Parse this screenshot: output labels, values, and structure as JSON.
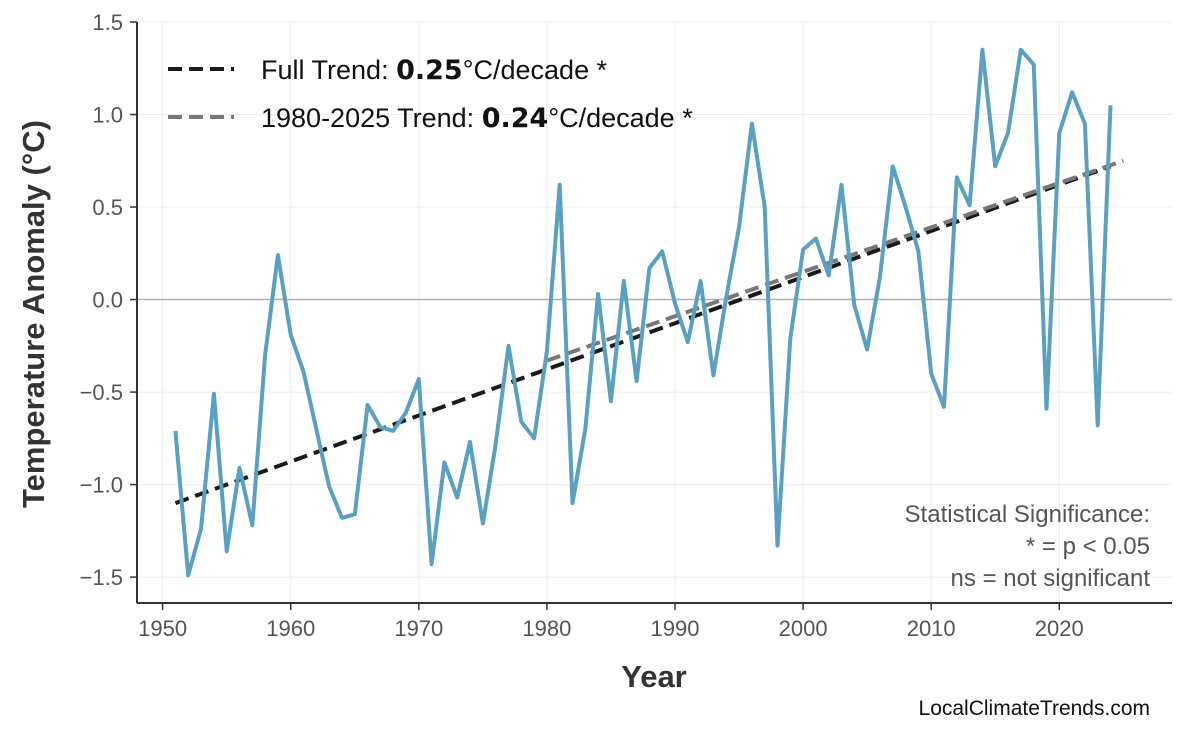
{
  "chart_data": {
    "type": "line",
    "title": "",
    "xlabel": "Year",
    "ylabel": "Temperature Anomaly (°C)",
    "xlim": [
      1948,
      2028.8
    ],
    "ylim": [
      -1.64,
      1.5
    ],
    "xticks": [
      1950,
      1960,
      1970,
      1980,
      1990,
      2000,
      2010,
      2020
    ],
    "yticks": [
      -1.5,
      -1.0,
      -0.5,
      0.0,
      0.5,
      1.0,
      1.5
    ],
    "ytick_labels": [
      "−1.5",
      "−1.0",
      "−0.5",
      "0.0",
      "0.5",
      "1.0",
      "1.5"
    ],
    "grid": true,
    "zero_line": true,
    "x": [
      1951,
      1952,
      1953,
      1954,
      1955,
      1956,
      1957,
      1958,
      1959,
      1960,
      1961,
      1962,
      1963,
      1964,
      1965,
      1966,
      1967,
      1968,
      1969,
      1970,
      1971,
      1972,
      1973,
      1974,
      1975,
      1976,
      1977,
      1978,
      1979,
      1980,
      1981,
      1982,
      1983,
      1984,
      1985,
      1986,
      1987,
      1988,
      1989,
      1990,
      1991,
      1992,
      1993,
      1994,
      1995,
      1996,
      1997,
      1998,
      1999,
      2000,
      2001,
      2002,
      2003,
      2004,
      2005,
      2006,
      2007,
      2008,
      2009,
      2010,
      2011,
      2012,
      2013,
      2014,
      2015,
      2016,
      2017,
      2018,
      2019,
      2020,
      2021,
      2022,
      2023,
      2024
    ],
    "series": [
      {
        "values": [
          -0.71,
          -1.49,
          -1.24,
          -0.51,
          -1.36,
          -0.91,
          -1.22,
          -0.3,
          0.24,
          -0.19,
          -0.39,
          -0.7,
          -1.01,
          -1.18,
          -1.16,
          -0.57,
          -0.69,
          -0.71,
          -0.61,
          -0.43,
          -1.43,
          -0.88,
          -1.07,
          -0.77,
          -1.21,
          -0.78,
          -0.25,
          -0.66,
          -0.75,
          -0.28,
          0.62,
          -1.1,
          -0.7,
          0.03,
          -0.55,
          0.1,
          -0.44,
          0.17,
          0.26,
          -0.02,
          -0.23,
          0.1,
          -0.41,
          0.01,
          0.39,
          0.95,
          0.5,
          -1.33,
          -0.21,
          0.27,
          0.33,
          0.13,
          0.62,
          -0.03,
          -0.27,
          0.12,
          0.72,
          0.5,
          0.26,
          -0.4,
          -0.58,
          0.66,
          0.51,
          1.35,
          0.72,
          0.9,
          1.35,
          1.27,
          -0.59,
          0.9,
          1.12,
          0.95,
          -0.68,
          1.05
        ],
        "color": "#5aa0c0"
      }
    ],
    "trends": [
      {
        "name": "Full Trend",
        "rate": "0.25",
        "unit": "°C/decade *",
        "x": [
          1951,
          2024
        ],
        "y": [
          -1.1,
          0.72
        ],
        "color": "#1a1a1a"
      },
      {
        "name": "1980-2025 Trend",
        "rate": "0.24",
        "unit": "°C/decade *",
        "x": [
          1980,
          2025
        ],
        "y": [
          -0.33,
          0.75
        ],
        "color": "#777777"
      }
    ],
    "legend_position": "top-left",
    "annotation": [
      "Statistical Significance:",
      "* = p < 0.05",
      "ns = not significant"
    ]
  },
  "watermark": "LocalClimateTrends.com"
}
